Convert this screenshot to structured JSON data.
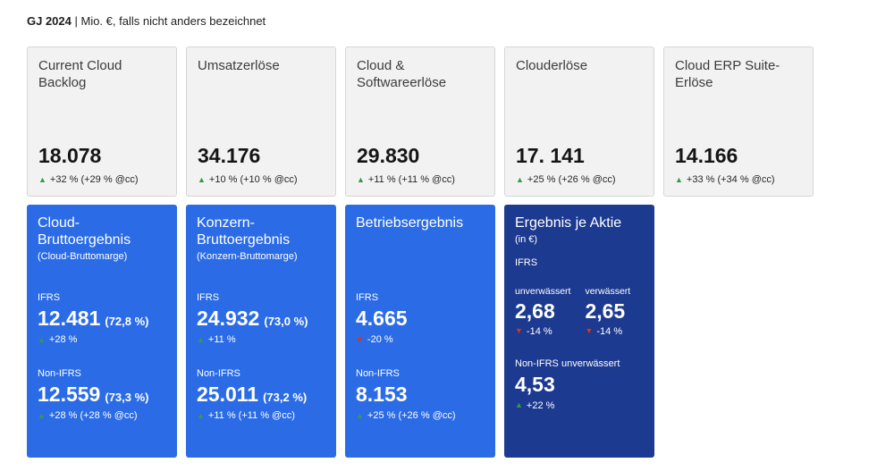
{
  "colors": {
    "blue": "#2b6ce6",
    "navy": "#1c3a90",
    "green": "#2f9e44",
    "red": "#e0301e",
    "light_card": "#f2f2f2"
  },
  "header": {
    "period": "GJ 2024",
    "unit_note": "| Mio. €, falls nicht anders bezeichnet"
  },
  "top_cards": [
    {
      "title": "Current Cloud Backlog",
      "value": "18.078",
      "arrow": "▲",
      "arrow_class": "tri up",
      "delta": "+32 % (+29 % @cc)"
    },
    {
      "title": "Umsatzerlöse",
      "value": "34.176",
      "arrow": "▲",
      "arrow_class": "tri up",
      "delta": "+10 % (+10 % @cc)"
    },
    {
      "title": "Cloud & Softwareerlöse",
      "value": "29.830",
      "arrow": "▲",
      "arrow_class": "tri up",
      "delta": "+11 % (+11 % @cc)"
    },
    {
      "title": "Clouderlöse",
      "value": "17. 141",
      "arrow": "▲",
      "arrow_class": "tri up",
      "delta": "+25 % (+26 % @cc)"
    },
    {
      "title": "Cloud ERP Suite-Erlöse",
      "value": "14.166",
      "arrow": "▲",
      "arrow_class": "tri up",
      "delta": "+33 % (+34 % @cc)"
    }
  ],
  "bottom_cards": [
    {
      "title": "Cloud-Bruttoergebnis",
      "subtitle": "(Cloud-Bruttomarge)",
      "ifrs": {
        "label": "IFRS",
        "value": "12.481",
        "margin": "(72,8 %)",
        "arrow": "▲",
        "arrow_class": "tri up",
        "delta": "+28 %"
      },
      "nonifrs": {
        "label": "Non-IFRS",
        "value": "12.559",
        "margin": "(73,3 %)",
        "arrow": "▲",
        "arrow_class": "tri up",
        "delta": "+28 % (+28 % @cc)"
      }
    },
    {
      "title": "Konzern-Bruttoergebnis",
      "subtitle": "(Konzern-Bruttomarge)",
      "ifrs": {
        "label": "IFRS",
        "value": "24.932",
        "margin": "(73,0 %)",
        "arrow": "▲",
        "arrow_class": "tri up",
        "delta": "+11 %"
      },
      "nonifrs": {
        "label": "Non-IFRS",
        "value": "25.011",
        "margin": "(73,2 %)",
        "arrow": "▲",
        "arrow_class": "tri up",
        "delta": "+11 % (+11 % @cc)"
      }
    },
    {
      "title": "Betriebsergebnis",
      "subtitle": "",
      "ifrs": {
        "label": "IFRS",
        "value": "4.665",
        "margin": "",
        "arrow": "▼",
        "arrow_class": "tri down",
        "delta": "-20 %"
      },
      "nonifrs": {
        "label": "Non-IFRS",
        "value": "8.153",
        "margin": "",
        "arrow": "▲",
        "arrow_class": "tri up",
        "delta": "+25 % (+26 % @cc)"
      }
    },
    {
      "title": "Ergebnis je Aktie",
      "subtitle": "(in €)",
      "ifrs_label": "IFRS",
      "columns": [
        {
          "header": "unverwässert",
          "value": "2,68",
          "arrow": "▼",
          "arrow_class": "tri down",
          "delta": "-14 %"
        },
        {
          "header": "verwässert",
          "value": "2,65",
          "arrow": "▼",
          "arrow_class": "tri down",
          "delta": "-14 %"
        }
      ],
      "nonifrs_label": "Non-IFRS unverwässert",
      "nonifrs_value": "4,53",
      "nonifrs_arrow": "▲",
      "nonifrs_arrow_class": "tri up",
      "nonifrs_delta": "+22 %"
    }
  ],
  "chart_data": {
    "type": "table",
    "title": "GJ 2024 | Mio. €, falls nicht anders bezeichnet",
    "rows": [
      {
        "metric": "Current Cloud Backlog",
        "value": 18078,
        "change": "+32 %",
        "change_cc": "+29 %"
      },
      {
        "metric": "Umsatzerlöse",
        "value": 34176,
        "change": "+10 %",
        "change_cc": "+10 %"
      },
      {
        "metric": "Cloud & Softwareerlöse",
        "value": 29830,
        "change": "+11 %",
        "change_cc": "+11 %"
      },
      {
        "metric": "Clouderlöse",
        "value": 17141,
        "change": "+25 %",
        "change_cc": "+26 %"
      },
      {
        "metric": "Cloud ERP Suite-Erlöse",
        "value": 14166,
        "change": "+33 %",
        "change_cc": "+34 %"
      },
      {
        "metric": "Cloud-Bruttoergebnis IFRS",
        "value": 12481,
        "margin": "72,8 %",
        "change": "+28 %"
      },
      {
        "metric": "Cloud-Bruttoergebnis Non-IFRS",
        "value": 12559,
        "margin": "73,3 %",
        "change": "+28 %",
        "change_cc": "+28 %"
      },
      {
        "metric": "Konzern-Bruttoergebnis IFRS",
        "value": 24932,
        "margin": "73,0 %",
        "change": "+11 %"
      },
      {
        "metric": "Konzern-Bruttoergebnis Non-IFRS",
        "value": 25011,
        "margin": "73,2 %",
        "change": "+11 %",
        "change_cc": "+11 %"
      },
      {
        "metric": "Betriebsergebnis IFRS",
        "value": 4665,
        "change": "-20 %"
      },
      {
        "metric": "Betriebsergebnis Non-IFRS",
        "value": 8153,
        "change": "+25 %",
        "change_cc": "+26 %"
      },
      {
        "metric": "Ergebnis je Aktie IFRS unverwässert (€)",
        "value": 2.68,
        "change": "-14 %"
      },
      {
        "metric": "Ergebnis je Aktie IFRS verwässert (€)",
        "value": 2.65,
        "change": "-14 %"
      },
      {
        "metric": "Ergebnis je Aktie Non-IFRS unverwässert (€)",
        "value": 4.53,
        "change": "+22 %"
      }
    ]
  }
}
